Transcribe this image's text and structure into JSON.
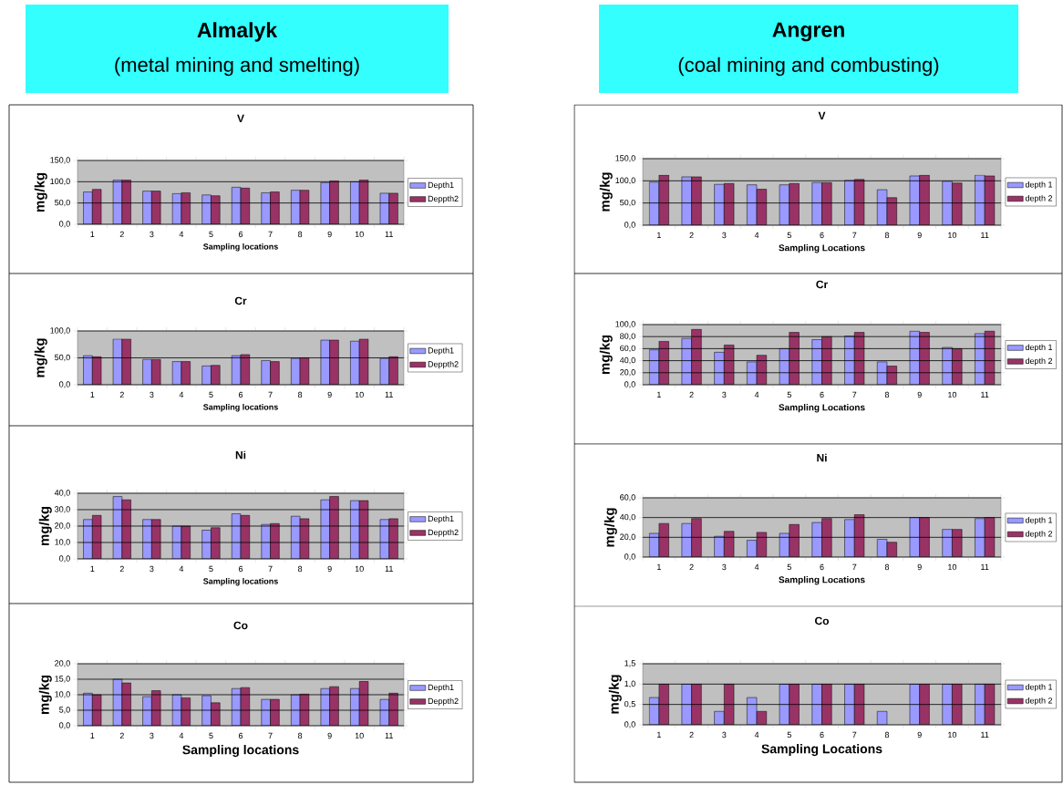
{
  "chart_data": [
    {
      "type": "other",
      "title": "Almalyk",
      "subtitle": "(metal mining and smelting)",
      "color": "#33ffff"
    },
    {
      "type": "bar",
      "title": "V",
      "xlabel": "Sampling locations",
      "ylabel": "mg/kg",
      "categories": [
        "1",
        "2",
        "3",
        "4",
        "5",
        "6",
        "7",
        "8",
        "9",
        "10",
        "11"
      ],
      "series": [
        {
          "name": "Depth1",
          "color": "#9999ff",
          "values": [
            76,
            104,
            78,
            72,
            69,
            87,
            74,
            80,
            98,
            100,
            73
          ]
        },
        {
          "name": "Deppth2",
          "color": "#993366",
          "values": [
            82,
            104,
            78,
            74,
            67,
            85,
            76,
            80,
            102,
            104,
            73
          ]
        }
      ],
      "ylim": [
        0,
        150
      ],
      "yticks": [
        {
          "value": 0,
          "label": "0,0"
        },
        {
          "value": 50,
          "label": "50,0"
        },
        {
          "value": 100,
          "label": "100,0"
        },
        {
          "value": 150,
          "label": "150,0"
        }
      ],
      "grid": "y",
      "legend": "right"
    },
    {
      "type": "bar",
      "title": "Cr",
      "xlabel": "Sampling locations",
      "ylabel": "mg/kg",
      "categories": [
        "1",
        "2",
        "3",
        "4",
        "5",
        "6",
        "7",
        "8",
        "9",
        "10",
        "11"
      ],
      "series": [
        {
          "name": "Depth1",
          "color": "#9999ff",
          "values": [
            54,
            85,
            47,
            43,
            35,
            54,
            45,
            49,
            83,
            81,
            49
          ]
        },
        {
          "name": "Deppth2",
          "color": "#993366",
          "values": [
            52,
            85,
            47,
            43,
            36,
            56,
            43,
            50,
            83,
            85,
            52
          ]
        }
      ],
      "ylim": [
        0,
        100
      ],
      "yticks": [
        {
          "value": 0,
          "label": "0,0"
        },
        {
          "value": 50,
          "label": "50,0"
        },
        {
          "value": 100,
          "label": "100,0"
        }
      ],
      "grid": "y",
      "legend": "right"
    },
    {
      "type": "bar",
      "title": "Ni",
      "xlabel": "Sampling locations",
      "ylabel": "mg/kg",
      "categories": [
        "1",
        "2",
        "3",
        "4",
        "5",
        "6",
        "7",
        "8",
        "9",
        "10",
        "11"
      ],
      "series": [
        {
          "name": "Depth1",
          "color": "#9999ff",
          "values": [
            24,
            38,
            24,
            20,
            17.5,
            27.5,
            21,
            26,
            36,
            35.5,
            24
          ]
        },
        {
          "name": "Deppth2",
          "color": "#993366",
          "values": [
            26.5,
            36,
            24,
            20,
            19,
            26.5,
            21.5,
            24.5,
            38,
            35.5,
            24.5
          ]
        }
      ],
      "ylim": [
        0,
        40
      ],
      "yticks": [
        {
          "value": 0,
          "label": "0,0"
        },
        {
          "value": 10,
          "label": "10,0"
        },
        {
          "value": 20,
          "label": "20,0"
        },
        {
          "value": 30,
          "label": "30,0"
        },
        {
          "value": 40,
          "label": "40,0"
        }
      ],
      "grid": "y",
      "legend": "right"
    },
    {
      "type": "bar",
      "title": "Co",
      "xlabel": "Sampling locations",
      "ylabel": "mg/kg",
      "categories": [
        "1",
        "2",
        "3",
        "4",
        "5",
        "6",
        "7",
        "8",
        "9",
        "10",
        "11"
      ],
      "series": [
        {
          "name": "Depth1",
          "color": "#9999ff",
          "values": [
            10.5,
            15,
            9.4,
            10,
            9.7,
            12,
            8.5,
            10,
            12,
            12,
            8.5
          ]
        },
        {
          "name": "Deppth2",
          "color": "#993366",
          "values": [
            10,
            13.8,
            11.3,
            9,
            7.4,
            12.3,
            8.5,
            10.2,
            12.6,
            14.3,
            10.5
          ]
        }
      ],
      "ylim": [
        0,
        20
      ],
      "yticks": [
        {
          "value": 0,
          "label": "0,0"
        },
        {
          "value": 5,
          "label": "5,0"
        },
        {
          "value": 10,
          "label": "10,0"
        },
        {
          "value": 15,
          "label": "15,0"
        },
        {
          "value": 20,
          "label": "20,0"
        }
      ],
      "grid": "y",
      "legend": "right"
    },
    {
      "type": "other",
      "title": "Angren",
      "subtitle": "(coal mining and combusting)",
      "color": "#33ffff"
    },
    {
      "type": "bar",
      "title": "V",
      "xlabel": "Sampling Locations",
      "ylabel": "mg/kg",
      "categories": [
        "1",
        "2",
        "3",
        "4",
        "5",
        "6",
        "7",
        "8",
        "9",
        "10",
        "11"
      ],
      "series": [
        {
          "name": "depth 1",
          "color": "#9999ff",
          "values": [
            97,
            109,
            92,
            91,
            91,
            96,
            101,
            80,
            111,
            99,
            113
          ]
        },
        {
          "name": "depth 2",
          "color": "#993366",
          "values": [
            113,
            109,
            94,
            81,
            94,
            96,
            103,
            62,
            113,
            95,
            111
          ]
        }
      ],
      "ylim": [
        0,
        150
      ],
      "yticks": [
        {
          "value": 0,
          "label": "0,0"
        },
        {
          "value": 50,
          "label": "50,0"
        },
        {
          "value": 100,
          "label": "100,0"
        },
        {
          "value": 150,
          "label": "150,0"
        }
      ],
      "grid": "y",
      "legend": "right"
    },
    {
      "type": "bar",
      "title": "Cr",
      "xlabel": "Sampling Locations",
      "ylabel": "mg/kg",
      "categories": [
        "1",
        "2",
        "3",
        "4",
        "5",
        "6",
        "7",
        "8",
        "9",
        "10",
        "11"
      ],
      "series": [
        {
          "name": "depth 1",
          "color": "#9999ff",
          "values": [
            58,
            77,
            54,
            38,
            60,
            75,
            81,
            38,
            89,
            62,
            85
          ]
        },
        {
          "name": "depth 2",
          "color": "#993366",
          "values": [
            72,
            92,
            66,
            49,
            87,
            80,
            87,
            31,
            87,
            60,
            89
          ]
        }
      ],
      "ylim": [
        0,
        100
      ],
      "yticks": [
        {
          "value": 0,
          "label": "0,0"
        },
        {
          "value": 20,
          "label": "20,0"
        },
        {
          "value": 40,
          "label": "40,0"
        },
        {
          "value": 60,
          "label": "60,0"
        },
        {
          "value": 80,
          "label": "80,0"
        },
        {
          "value": 100,
          "label": "100,0"
        }
      ],
      "grid": "y",
      "legend": "right"
    },
    {
      "type": "bar",
      "title": "Ni",
      "xlabel": "Sampling Locations",
      "ylabel": "mg/kg",
      "categories": [
        "1",
        "2",
        "3",
        "4",
        "5",
        "6",
        "7",
        "8",
        "9",
        "10",
        "11"
      ],
      "series": [
        {
          "name": "depth 1",
          "color": "#9999ff",
          "values": [
            24,
            34,
            21,
            17,
            24,
            35,
            38,
            18,
            40,
            28,
            39
          ]
        },
        {
          "name": "depth 2",
          "color": "#993366",
          "values": [
            34,
            39,
            26,
            25,
            33,
            39,
            43,
            15,
            40,
            28,
            40
          ]
        }
      ],
      "ylim": [
        0,
        60
      ],
      "yticks": [
        {
          "value": 0,
          "label": "0,0"
        },
        {
          "value": 20,
          "label": "20,0"
        },
        {
          "value": 40,
          "label": "40,0"
        },
        {
          "value": 60,
          "label": "60,0"
        }
      ],
      "grid": "y",
      "legend": "right"
    },
    {
      "type": "bar",
      "title": "Co",
      "xlabel": "Sampling Locations",
      "ylabel": "mg/kg",
      "categories": [
        "1",
        "2",
        "3",
        "4",
        "5",
        "6",
        "7",
        "8",
        "9",
        "10",
        "11"
      ],
      "series": [
        {
          "name": "depth 1",
          "color": "#9999ff",
          "values": [
            0.67,
            1,
            0.33,
            0.67,
            1,
            1,
            1,
            0.33,
            1,
            1,
            1
          ]
        },
        {
          "name": "depth 2",
          "color": "#993366",
          "values": [
            1,
            1,
            1,
            0.33,
            1,
            1,
            1,
            null,
            1,
            1,
            1
          ]
        }
      ],
      "ylim": [
        0,
        1.5
      ],
      "yticks": [
        {
          "value": 0,
          "label": "0,0"
        },
        {
          "value": 0.5,
          "label": "0,5"
        },
        {
          "value": 1,
          "label": "1,0"
        },
        {
          "value": 1.5,
          "label": "1,5"
        }
      ],
      "grid": "y",
      "legend": "right"
    }
  ]
}
